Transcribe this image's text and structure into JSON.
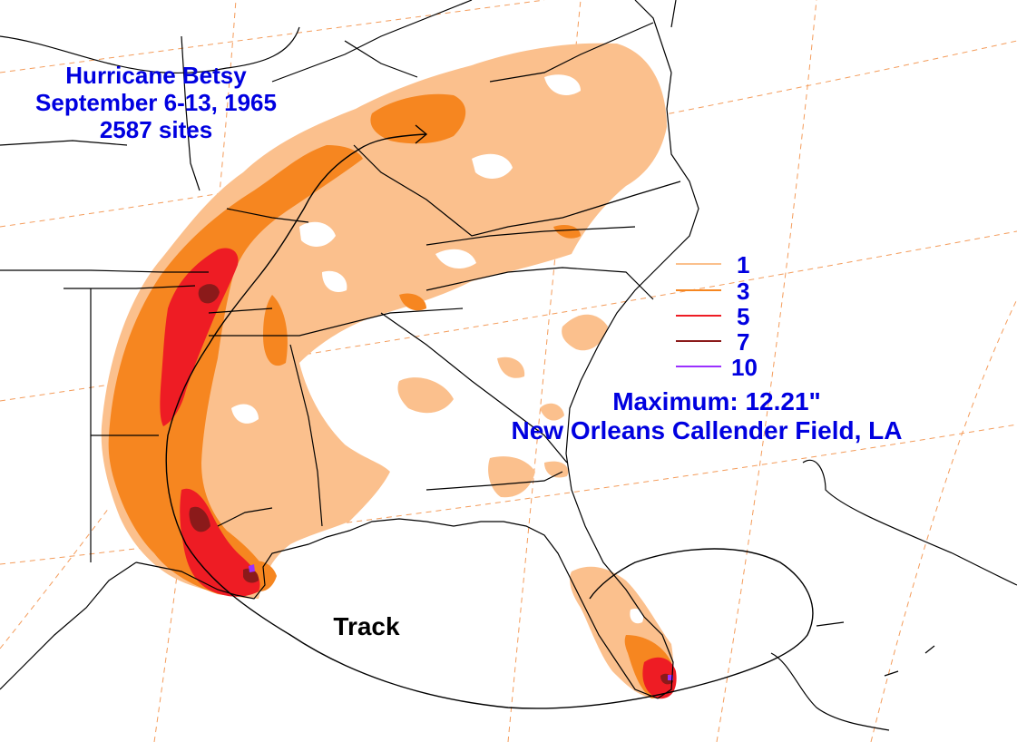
{
  "title": {
    "line1": "Hurricane Betsy",
    "line2": "September 6-13, 1965",
    "line3": "2587 sites"
  },
  "legend": {
    "items": [
      {
        "label": "1",
        "color": "#fbc08d"
      },
      {
        "label": "3",
        "color": "#f68620"
      },
      {
        "label": "5",
        "color": "#ee1c24"
      },
      {
        "label": "7",
        "color": "#8b1a1a"
      },
      {
        "label": "10",
        "color": "#9b30ff"
      }
    ]
  },
  "maximum": {
    "line1": "Maximum:  12.21\"",
    "line2": "New Orleans Callender Field, LA"
  },
  "track_label": "Track",
  "colors": {
    "text": "#0000e0",
    "boundary": "#000000",
    "gridline": "#f49c5b"
  }
}
